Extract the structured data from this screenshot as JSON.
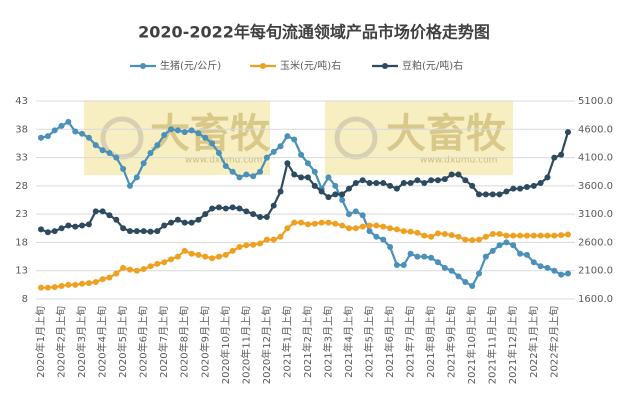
{
  "chart_data": {
    "type": "line",
    "title": "2020-2022年每旬流通领域产品市场价格走势图",
    "watermark": {
      "text": "大畜牧",
      "url": "www.dxumu.com"
    },
    "categories": [
      "2020年1月上旬",
      null,
      null,
      "2020年2月上旬",
      null,
      null,
      "2020年3月上旬",
      null,
      null,
      "2020年4月上旬",
      null,
      null,
      "2020年5月上旬",
      null,
      null,
      "2020年6月上旬",
      null,
      null,
      "2020年7月上旬",
      null,
      null,
      "2020年8月上旬",
      null,
      null,
      "2020年9月上旬",
      null,
      null,
      "2020年10月上旬",
      null,
      null,
      "2020年11月上旬",
      null,
      null,
      "2020年12月上旬",
      null,
      null,
      "2021年1月上旬",
      null,
      null,
      "2021年2月上旬",
      null,
      null,
      "2021年3月上旬",
      null,
      null,
      "2021年4月上旬",
      null,
      null,
      "2021年5月上旬",
      null,
      null,
      "2021年6月上旬",
      null,
      null,
      "2021年7月上旬",
      null,
      null,
      "2021年8月上旬",
      null,
      null,
      "2021年9月上旬",
      null,
      null,
      "2021年10月上旬",
      null,
      null,
      "2021年11月上旬",
      null,
      null,
      "2021年12月上旬",
      null,
      null,
      "2022年1月上旬",
      null,
      null,
      "2022年2月上旬",
      null,
      null
    ],
    "series": [
      {
        "name": "生猪(元/公斤)",
        "color": "#4a90b8",
        "axis": "y",
        "values": [
          36.5,
          36.8,
          37.8,
          38.6,
          39.3,
          37.6,
          37.2,
          36.5,
          35.2,
          34.3,
          33.8,
          33.0,
          31.0,
          28.0,
          29.5,
          32.0,
          33.8,
          35.2,
          37.0,
          38.0,
          37.8,
          37.5,
          37.8,
          37.3,
          36.5,
          35.5,
          33.8,
          31.5,
          30.5,
          29.5,
          30.0,
          29.7,
          30.5,
          33.0,
          34.0,
          35.0,
          36.8,
          36.2,
          33.5,
          32.0,
          30.5,
          27.5,
          29.5,
          28.0,
          25.5,
          23.0,
          23.5,
          22.8,
          20.0,
          19.0,
          18.5,
          17.2,
          14.0,
          14.0,
          16.0,
          15.5,
          15.5,
          15.3,
          14.5,
          13.5,
          13.0,
          12.0,
          11.0,
          10.3,
          12.5,
          15.5,
          16.5,
          17.5,
          18.0,
          17.5,
          16.0,
          15.8,
          14.5,
          13.8,
          13.5,
          13.0,
          12.3,
          12.5
        ]
      },
      {
        "name": "玉米(元/吨)右",
        "color": "#f0a020",
        "axis": "y2",
        "values": [
          1800,
          1800,
          1810,
          1830,
          1850,
          1850,
          1870,
          1880,
          1900,
          1950,
          1980,
          2050,
          2150,
          2120,
          2100,
          2130,
          2180,
          2220,
          2250,
          2300,
          2350,
          2450,
          2400,
          2380,
          2350,
          2320,
          2350,
          2380,
          2450,
          2520,
          2550,
          2560,
          2580,
          2650,
          2650,
          2700,
          2850,
          2950,
          2950,
          2920,
          2930,
          2950,
          2950,
          2930,
          2900,
          2850,
          2850,
          2880,
          2900,
          2900,
          2880,
          2850,
          2830,
          2800,
          2790,
          2770,
          2720,
          2700,
          2760,
          2750,
          2730,
          2700,
          2650,
          2640,
          2650,
          2700,
          2750,
          2750,
          2720,
          2720,
          2720,
          2720,
          2720,
          2720,
          2720,
          2720,
          2730,
          2740
        ]
      },
      {
        "name": "豆粕(元/吨)右",
        "color": "#2d4a5e",
        "axis": "y2",
        "values": [
          2830,
          2780,
          2800,
          2850,
          2900,
          2880,
          2900,
          2920,
          3150,
          3150,
          3080,
          3000,
          2850,
          2800,
          2800,
          2800,
          2790,
          2800,
          2900,
          2950,
          3000,
          2950,
          2950,
          3000,
          3100,
          3200,
          3220,
          3200,
          3220,
          3200,
          3150,
          3100,
          3050,
          3050,
          3250,
          3500,
          4000,
          3800,
          3750,
          3750,
          3600,
          3500,
          3400,
          3450,
          3450,
          3550,
          3650,
          3700,
          3650,
          3650,
          3650,
          3600,
          3550,
          3650,
          3650,
          3700,
          3650,
          3700,
          3700,
          3720,
          3800,
          3800,
          3700,
          3600,
          3450,
          3450,
          3450,
          3450,
          3500,
          3550,
          3550,
          3580,
          3600,
          3650,
          3750,
          4100,
          4150,
          4550
        ]
      }
    ],
    "ylim": [
      8,
      43
    ],
    "yticks": [
      8,
      13,
      18,
      23,
      28,
      33,
      38,
      43
    ],
    "y2lim": [
      1600,
      5100
    ],
    "y2ticks": [
      {
        "value": 1600,
        "label": "1600.0"
      },
      {
        "value": 2100,
        "label": "2100.0"
      },
      {
        "value": 2600,
        "label": "2600.0"
      },
      {
        "value": 3100,
        "label": "3100.0"
      },
      {
        "value": 3600,
        "label": "3600.0"
      },
      {
        "value": 4100,
        "label": "4100.0"
      },
      {
        "value": 4600,
        "label": "4600.0"
      },
      {
        "value": 5100,
        "label": "5100.0"
      }
    ],
    "grid": true,
    "legend": "top"
  }
}
